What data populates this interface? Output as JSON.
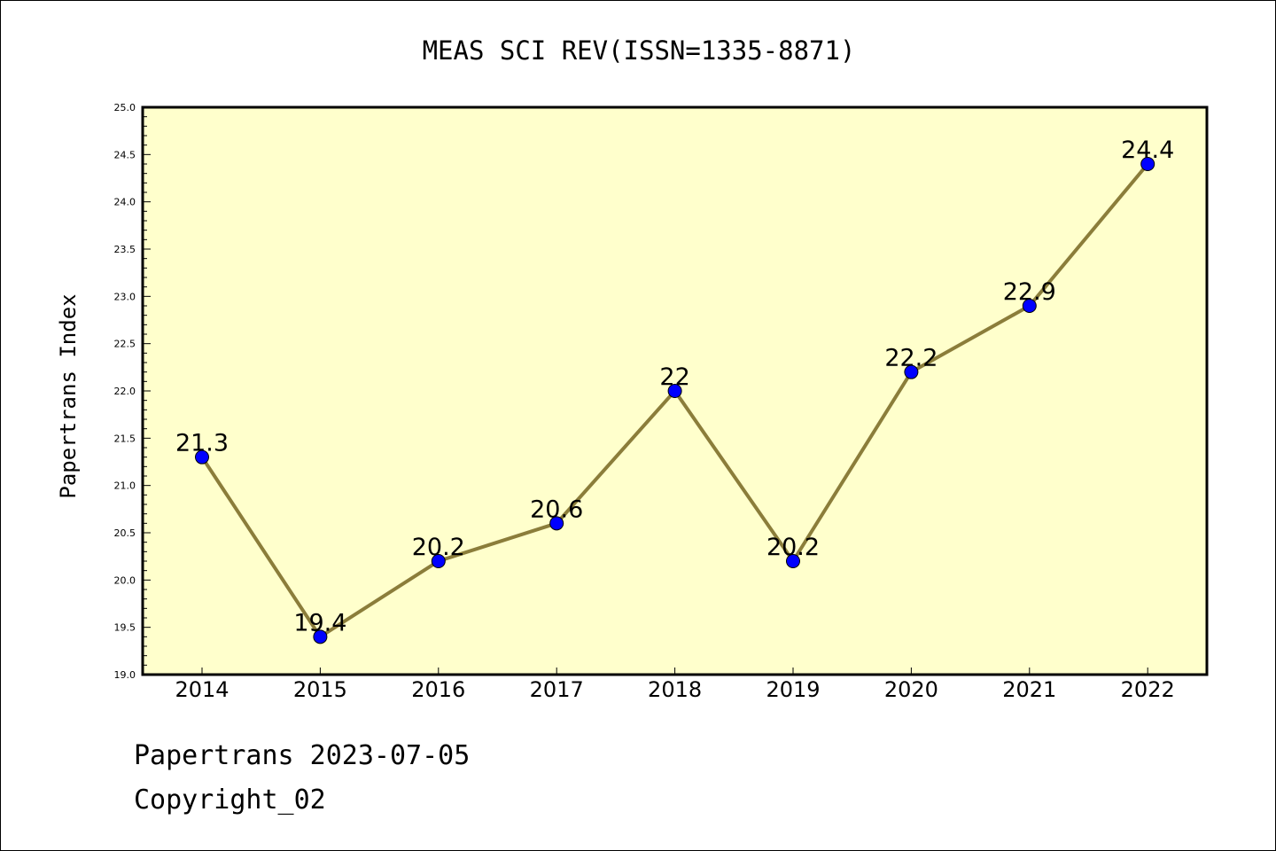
{
  "chart_data": {
    "type": "line",
    "title": "MEAS SCI REV(ISSN=1335-8871)",
    "ylabel": "Papertrans Index",
    "xlabel": "",
    "categories": [
      "2014",
      "2015",
      "2016",
      "2017",
      "2018",
      "2019",
      "2020",
      "2021",
      "2022"
    ],
    "series": [
      {
        "values": [
          21.3,
          19.4,
          20.2,
          20.6,
          22,
          20.2,
          22.2,
          22.9,
          24.4
        ],
        "labels": [
          "21.3",
          "19.4",
          "20.2",
          "20.6",
          "22",
          "20.2",
          "22.2",
          "22.9",
          "24.4"
        ]
      }
    ],
    "ylim": [
      19.0,
      25.0
    ],
    "yticks": [
      "19.0",
      "19.5",
      "20.0",
      "20.5",
      "21.0",
      "21.5",
      "22.0",
      "22.5",
      "23.0",
      "23.5",
      "24.0",
      "24.5",
      "25.0"
    ],
    "grid": false,
    "colors": {
      "plot_background": "#ffffcc",
      "line": "#8b7d3a",
      "marker": "#0000ff",
      "frame": "#000000"
    }
  },
  "footer": {
    "date_line": "Papertrans 2023-07-05",
    "copyright_line": "Copyright_02"
  }
}
